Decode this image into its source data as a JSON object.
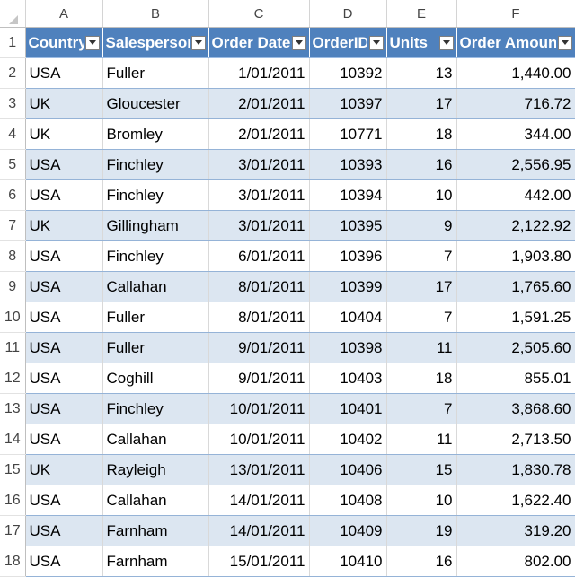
{
  "column_letters": [
    "A",
    "B",
    "C",
    "D",
    "E",
    "F"
  ],
  "header_row": {
    "row_number": "1",
    "labels": [
      "Country",
      "Salesperson",
      "Order Date",
      "OrderID",
      "Units",
      "Order Amount"
    ]
  },
  "rows": [
    {
      "row_number": "2",
      "country": "USA",
      "salesperson": "Fuller",
      "order_date": "1/01/2011",
      "order_id": "10392",
      "units": "13",
      "amount": "1,440.00"
    },
    {
      "row_number": "3",
      "country": "UK",
      "salesperson": "Gloucester",
      "order_date": "2/01/2011",
      "order_id": "10397",
      "units": "17",
      "amount": "716.72"
    },
    {
      "row_number": "4",
      "country": "UK",
      "salesperson": "Bromley",
      "order_date": "2/01/2011",
      "order_id": "10771",
      "units": "18",
      "amount": "344.00"
    },
    {
      "row_number": "5",
      "country": "USA",
      "salesperson": "Finchley",
      "order_date": "3/01/2011",
      "order_id": "10393",
      "units": "16",
      "amount": "2,556.95"
    },
    {
      "row_number": "6",
      "country": "USA",
      "salesperson": "Finchley",
      "order_date": "3/01/2011",
      "order_id": "10394",
      "units": "10",
      "amount": "442.00"
    },
    {
      "row_number": "7",
      "country": "UK",
      "salesperson": "Gillingham",
      "order_date": "3/01/2011",
      "order_id": "10395",
      "units": "9",
      "amount": "2,122.92"
    },
    {
      "row_number": "8",
      "country": "USA",
      "salesperson": "Finchley",
      "order_date": "6/01/2011",
      "order_id": "10396",
      "units": "7",
      "amount": "1,903.80"
    },
    {
      "row_number": "9",
      "country": "USA",
      "salesperson": "Callahan",
      "order_date": "8/01/2011",
      "order_id": "10399",
      "units": "17",
      "amount": "1,765.60"
    },
    {
      "row_number": "10",
      "country": "USA",
      "salesperson": "Fuller",
      "order_date": "8/01/2011",
      "order_id": "10404",
      "units": "7",
      "amount": "1,591.25"
    },
    {
      "row_number": "11",
      "country": "USA",
      "salesperson": "Fuller",
      "order_date": "9/01/2011",
      "order_id": "10398",
      "units": "11",
      "amount": "2,505.60"
    },
    {
      "row_number": "12",
      "country": "USA",
      "salesperson": "Coghill",
      "order_date": "9/01/2011",
      "order_id": "10403",
      "units": "18",
      "amount": "855.01"
    },
    {
      "row_number": "13",
      "country": "USA",
      "salesperson": "Finchley",
      "order_date": "10/01/2011",
      "order_id": "10401",
      "units": "7",
      "amount": "3,868.60"
    },
    {
      "row_number": "14",
      "country": "USA",
      "salesperson": "Callahan",
      "order_date": "10/01/2011",
      "order_id": "10402",
      "units": "11",
      "amount": "2,713.50"
    },
    {
      "row_number": "15",
      "country": "UK",
      "salesperson": "Rayleigh",
      "order_date": "13/01/2011",
      "order_id": "10406",
      "units": "15",
      "amount": "1,830.78"
    },
    {
      "row_number": "16",
      "country": "USA",
      "salesperson": "Callahan",
      "order_date": "14/01/2011",
      "order_id": "10408",
      "units": "10",
      "amount": "1,622.40"
    },
    {
      "row_number": "17",
      "country": "USA",
      "salesperson": "Farnham",
      "order_date": "14/01/2011",
      "order_id": "10409",
      "units": "19",
      "amount": "319.20"
    },
    {
      "row_number": "18",
      "country": "USA",
      "salesperson": "Farnham",
      "order_date": "15/01/2011",
      "order_id": "10410",
      "units": "16",
      "amount": "802.00"
    }
  ],
  "icons": {
    "filter_dropdown": "chevron-down-icon",
    "select_all_corner": "select-all-triangle-icon"
  },
  "colors": {
    "header_fill": "#4f81bd",
    "band_fill": "#dce6f1",
    "row_border": "#95b3d7"
  }
}
